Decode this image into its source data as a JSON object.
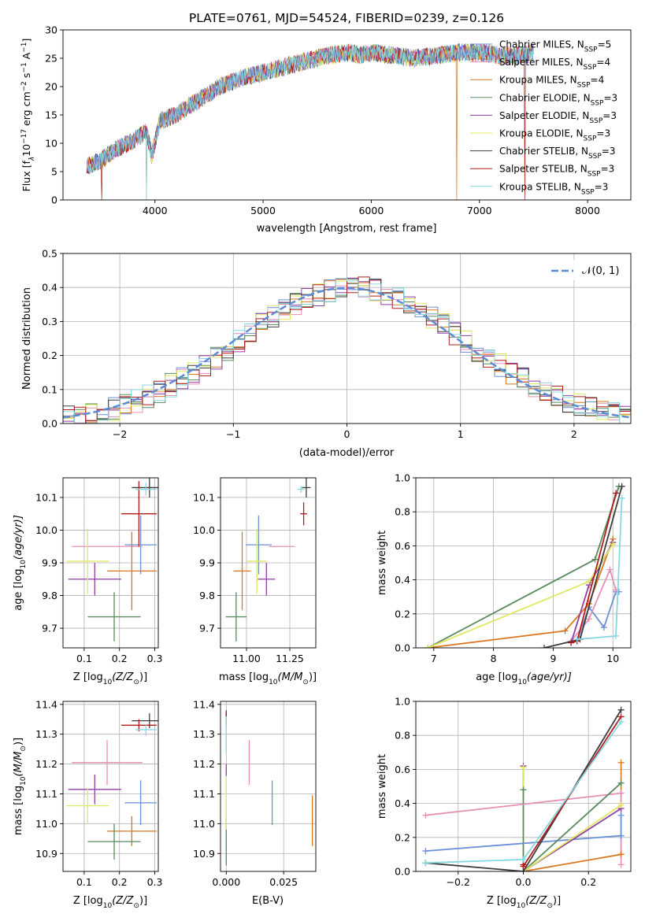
{
  "title": "PLATE=0761, MJD=54524, FIBERID=0239, z=0.126",
  "colors": {
    "chabrier_miles": "#6b8fd8",
    "salpeter_miles": "#e68fb5",
    "kroupa_miles": "#d9761f",
    "chabrier_elodie": "#5a8a5e",
    "salpeter_elodie": "#8e3fa6",
    "kroupa_elodie": "#e0e860",
    "chabrier_stelib": "#3d3d3d",
    "salpeter_stelib": "#b31c1c",
    "kroupa_stelib": "#86d8e0",
    "gauss": "#5b8bd6"
  },
  "chart_data": [
    {
      "id": "spectrum",
      "type": "line",
      "xlabel": "wavelength [Angstrom, rest frame]",
      "ylabel_main": "Flux [f",
      "ylabel_sub": "λ",
      "ylabel_rest": "10",
      "ylabel_exp": "−17",
      "ylabel_unit": " erg cm",
      "ylabel_exp2": "−2",
      "ylabel_s": " s",
      "ylabel_exp3": "−1",
      "ylabel_end": " A",
      "ylabel_exp4": "−1",
      "ylabel_close": "]",
      "xlim": [
        3150,
        8400
      ],
      "ylim": [
        0,
        30
      ],
      "xticks": [
        "4000",
        "5000",
        "6000",
        "7000",
        "8000"
      ],
      "yticks": [
        "0",
        "5",
        "10",
        "15",
        "20",
        "25",
        "30"
      ],
      "continuum": {
        "x": [
          3370,
          3500,
          3650,
          3800,
          3920,
          3970,
          4050,
          4200,
          4300,
          4400,
          4600,
          4800,
          5000,
          5200,
          5400,
          5600,
          5800,
          5900,
          6000,
          6200,
          6400,
          6600,
          6800,
          7000,
          7200,
          7400,
          7500
        ],
        "y": [
          6,
          7,
          9,
          10.5,
          12,
          8,
          14,
          15,
          16.5,
          17.5,
          20,
          21.5,
          22.5,
          23.5,
          24.5,
          25.5,
          26,
          25.5,
          26,
          25.5,
          25,
          25.5,
          26,
          26,
          25.5,
          25.5,
          26
        ]
      },
      "legend": [
        {
          "name": "Chabrier MILES, N",
          "sub": "SSP",
          "val": "=5",
          "color_key": "chabrier_miles"
        },
        {
          "name": "Salpeter MILES, N",
          "sub": "SSP",
          "val": "=4",
          "color_key": "salpeter_miles"
        },
        {
          "name": "Kroupa MILES, N",
          "sub": "SSP",
          "val": "=4",
          "color_key": "kroupa_miles"
        },
        {
          "name": "Chabrier ELODIE, N",
          "sub": "SSP",
          "val": "=3",
          "color_key": "chabrier_elodie"
        },
        {
          "name": "Salpeter ELODIE, N",
          "sub": "SSP",
          "val": "=3",
          "color_key": "salpeter_elodie"
        },
        {
          "name": "Kroupa ELODIE, N",
          "sub": "SSP",
          "val": "=3",
          "color_key": "kroupa_elodie"
        },
        {
          "name": "Chabrier STELIB, N",
          "sub": "SSP",
          "val": "=3",
          "color_key": "chabrier_stelib"
        },
        {
          "name": "Salpeter STELIB, N",
          "sub": "SSP",
          "val": "=3",
          "color_key": "salpeter_stelib"
        },
        {
          "name": "Kroupa STELIB, N",
          "sub": "SSP",
          "val": "=3",
          "color_key": "kroupa_stelib"
        }
      ]
    },
    {
      "id": "residual_hist",
      "type": "line",
      "xlabel": "(data-model)/error",
      "ylabel": "Normed distribution",
      "xlim": [
        -2.5,
        2.5
      ],
      "ylim": [
        0,
        0.5
      ],
      "xticks": [
        "−2",
        "−1",
        "0",
        "1",
        "2"
      ],
      "yticks": [
        "0.0",
        "0.1",
        "0.2",
        "0.3",
        "0.4",
        "0.5"
      ],
      "legend_label": "𝒩(0, 1)",
      "bin_edges": [
        -2.5,
        -2.4,
        -2.3,
        -2.2,
        -2.1,
        -2.0,
        -1.9,
        -1.8,
        -1.7,
        -1.6,
        -1.5,
        -1.4,
        -1.3,
        -1.2,
        -1.1,
        -1.0,
        -0.9,
        -0.8,
        -0.7,
        -0.6,
        -0.5,
        -0.4,
        -0.3,
        -0.2,
        -0.1,
        0.0,
        0.1,
        0.2,
        0.3,
        0.4,
        0.5,
        0.6,
        0.7,
        0.8,
        0.9,
        1.0,
        1.1,
        1.2,
        1.3,
        1.4,
        1.5,
        1.6,
        1.7,
        1.8,
        1.9,
        2.0,
        2.1,
        2.2,
        2.3,
        2.4,
        2.5
      ],
      "reference_density": [
        0.018,
        0.022,
        0.028,
        0.035,
        0.044,
        0.054,
        0.066,
        0.08,
        0.096,
        0.113,
        0.13,
        0.15,
        0.171,
        0.194,
        0.217,
        0.242,
        0.266,
        0.29,
        0.312,
        0.333,
        0.352,
        0.368,
        0.381,
        0.391,
        0.397,
        0.399,
        0.397,
        0.391,
        0.381,
        0.368,
        0.352,
        0.333,
        0.312,
        0.29,
        0.266,
        0.242,
        0.217,
        0.194,
        0.171,
        0.15,
        0.13,
        0.113,
        0.096,
        0.08,
        0.066,
        0.054,
        0.044,
        0.035,
        0.028,
        0.022
      ]
    },
    {
      "id": "age_vs_Z",
      "type": "scatter",
      "xlabel": "Z [log",
      "xlabel_sub": "10",
      "xlabel_rest": "(Z/Z",
      "xlabel_sun": "⊙",
      "xlabel_close": ")]",
      "ylabel": "age  [log",
      "ylabel_sub": "10",
      "ylabel_rest": "(age/yr)]",
      "xlim": [
        0.04,
        0.31
      ],
      "ylim": [
        9.64,
        10.16
      ],
      "xticks": [
        "0.1",
        "0.2",
        "0.3"
      ],
      "yticks": [
        "9.7",
        "9.8",
        "9.9",
        "10.0",
        "10.1"
      ],
      "points": [
        {
          "x": 0.26,
          "y": 9.955,
          "xerr": 0.045,
          "yerr": 0.09,
          "c": "chabrier_miles"
        },
        {
          "x": 0.165,
          "y": 9.95,
          "xerr": 0.1,
          "yerr": 0.0,
          "c": "salpeter_miles"
        },
        {
          "x": 0.235,
          "y": 9.875,
          "xerr": 0.07,
          "yerr": 0.12,
          "c": "kroupa_miles"
        },
        {
          "x": 0.185,
          "y": 9.735,
          "xerr": 0.075,
          "yerr": 0.075,
          "c": "chabrier_elodie"
        },
        {
          "x": 0.13,
          "y": 9.85,
          "xerr": 0.075,
          "yerr": 0.05,
          "c": "salpeter_elodie"
        },
        {
          "x": 0.11,
          "y": 9.905,
          "xerr": 0.06,
          "yerr": 0.1,
          "c": "kroupa_elodie"
        },
        {
          "x": 0.285,
          "y": 10.13,
          "xerr": 0.05,
          "yerr": 0.03,
          "c": "chabrier_stelib"
        },
        {
          "x": 0.255,
          "y": 10.05,
          "xerr": 0.05,
          "yerr": 0.1,
          "c": "salpeter_stelib"
        },
        {
          "x": 0.275,
          "y": 10.125,
          "xerr": 0.03,
          "yerr": 0.02,
          "c": "kroupa_stelib"
        }
      ]
    },
    {
      "id": "age_vs_mass",
      "type": "scatter",
      "xlabel": "mass [log",
      "xlabel_sub": "10",
      "xlabel_rest": "(M/M",
      "xlabel_sun": "⊙",
      "xlabel_close": ")]",
      "xlim": [
        10.85,
        11.4
      ],
      "ylim": [
        9.64,
        10.16
      ],
      "xticks": [
        "11.00",
        "11.25"
      ],
      "yticks": [
        "9.7",
        "9.8",
        "9.9",
        "10.0",
        "10.1"
      ],
      "points": [
        {
          "x": 11.07,
          "y": 9.955,
          "xerr": 0.075,
          "yerr": 0.09,
          "c": "chabrier_miles"
        },
        {
          "x": 11.205,
          "y": 9.95,
          "xerr": 0.075,
          "yerr": 0.0,
          "c": "salpeter_miles"
        },
        {
          "x": 10.975,
          "y": 9.875,
          "xerr": 0.05,
          "yerr": 0.12,
          "c": "kroupa_miles"
        },
        {
          "x": 10.94,
          "y": 9.735,
          "xerr": 0.06,
          "yerr": 0.075,
          "c": "chabrier_elodie"
        },
        {
          "x": 11.115,
          "y": 9.85,
          "xerr": 0.05,
          "yerr": 0.05,
          "c": "salpeter_elodie"
        },
        {
          "x": 11.06,
          "y": 9.905,
          "xerr": 0.06,
          "yerr": 0.1,
          "c": "kroupa_elodie"
        },
        {
          "x": 11.345,
          "y": 10.13,
          "xerr": 0.025,
          "yerr": 0.03,
          "c": "chabrier_stelib"
        },
        {
          "x": 11.33,
          "y": 10.05,
          "xerr": 0.02,
          "yerr": 0.035,
          "c": "salpeter_stelib"
        },
        {
          "x": 11.315,
          "y": 10.125,
          "xerr": 0.02,
          "yerr": 0.01,
          "c": "kroupa_stelib"
        }
      ]
    },
    {
      "id": "massweight_vs_age",
      "type": "line",
      "xlabel": "age  [log",
      "xlabel_sub": "10",
      "xlabel_rest": "(age/yr)]",
      "ylabel": "mass weight",
      "xlim": [
        6.7,
        10.3
      ],
      "ylim": [
        0,
        1
      ],
      "xticks": [
        "7",
        "8",
        "9",
        "10"
      ],
      "yticks": [
        "0.0",
        "0.2",
        "0.4",
        "0.6",
        "0.8",
        "1.0"
      ],
      "series": [
        {
          "c": "chabrier_miles",
          "x": [
            9.4,
            9.6,
            9.85,
            10.05,
            10.1
          ],
          "y": [
            0.04,
            0.24,
            0.12,
            0.33,
            0.33
          ]
        },
        {
          "c": "salpeter_miles",
          "x": [
            9.3,
            9.6,
            9.95,
            10.05
          ],
          "y": [
            0.04,
            0.17,
            0.46,
            0.34
          ]
        },
        {
          "c": "kroupa_miles",
          "x": [
            6.9,
            9.2,
            9.6,
            10.0
          ],
          "y": [
            0.0,
            0.1,
            0.26,
            0.64
          ]
        },
        {
          "c": "chabrier_elodie",
          "x": [
            6.9,
            9.7,
            10.1
          ],
          "y": [
            0.0,
            0.52,
            0.95
          ]
        },
        {
          "c": "salpeter_elodie",
          "x": [
            9.3,
            9.6,
            10.0
          ],
          "y": [
            0.03,
            0.37,
            0.62
          ]
        },
        {
          "c": "kroupa_elodie",
          "x": [
            6.9,
            9.6,
            10.0
          ],
          "y": [
            0.0,
            0.39,
            0.61
          ]
        },
        {
          "c": "chabrier_stelib",
          "x": [
            8.85,
            9.45,
            10.15
          ],
          "y": [
            0.0,
            0.05,
            0.95
          ]
        },
        {
          "c": "salpeter_stelib",
          "x": [
            9.3,
            9.4,
            10.05
          ],
          "y": [
            0.03,
            0.04,
            0.91
          ]
        },
        {
          "c": "kroupa_stelib",
          "x": [
            9.4,
            10.05,
            10.15
          ],
          "y": [
            0.05,
            0.07,
            0.88
          ]
        }
      ]
    },
    {
      "id": "mass_vs_Z",
      "type": "scatter",
      "xlabel": "Z [log",
      "xlabel_sub": "10",
      "xlabel_rest": "(Z/Z",
      "xlabel_sun": "⊙",
      "xlabel_close": ")]",
      "ylabel": "mass [log",
      "ylabel_sub": "10",
      "ylabel_rest": "(M/M",
      "ylabel_sun": "⊙",
      "ylabel_close": ")]",
      "xlim": [
        0.04,
        0.31
      ],
      "ylim": [
        10.84,
        11.41
      ],
      "xticks": [
        "0.1",
        "0.2",
        "0.3"
      ],
      "yticks": [
        "10.9",
        "11.0",
        "11.1",
        "11.2",
        "11.3",
        "11.4"
      ],
      "points": [
        {
          "x": 0.26,
          "y": 11.07,
          "xerr": 0.045,
          "yerr": 0.075,
          "c": "chabrier_miles"
        },
        {
          "x": 0.165,
          "y": 11.205,
          "xerr": 0.1,
          "yerr": 0.075,
          "c": "salpeter_miles"
        },
        {
          "x": 0.235,
          "y": 10.975,
          "xerr": 0.07,
          "yerr": 0.05,
          "c": "kroupa_miles"
        },
        {
          "x": 0.185,
          "y": 10.94,
          "xerr": 0.075,
          "yerr": 0.06,
          "c": "chabrier_elodie"
        },
        {
          "x": 0.13,
          "y": 11.115,
          "xerr": 0.075,
          "yerr": 0.05,
          "c": "salpeter_elodie"
        },
        {
          "x": 0.11,
          "y": 11.06,
          "xerr": 0.06,
          "yerr": 0.06,
          "c": "kroupa_elodie"
        },
        {
          "x": 0.285,
          "y": 11.345,
          "xerr": 0.05,
          "yerr": 0.025,
          "c": "chabrier_stelib"
        },
        {
          "x": 0.255,
          "y": 11.33,
          "xerr": 0.05,
          "yerr": 0.02,
          "c": "salpeter_stelib"
        },
        {
          "x": 0.275,
          "y": 11.315,
          "xerr": 0.03,
          "yerr": 0.02,
          "c": "kroupa_stelib"
        }
      ]
    },
    {
      "id": "mass_vs_ebv",
      "type": "scatter",
      "xlabel": "E(B-V)",
      "xlim": [
        -0.0025,
        0.039
      ],
      "ylim": [
        10.84,
        11.41
      ],
      "xticks": [
        "0.000",
        "0.025"
      ],
      "yticks": [
        "10.9",
        "11.0",
        "11.1",
        "11.2",
        "11.3",
        "11.4"
      ],
      "points": [
        {
          "x": 0.02,
          "y": 11.07,
          "xerr": 0,
          "yerr": 0.075,
          "c": "chabrier_miles"
        },
        {
          "x": 0.01,
          "y": 11.205,
          "xerr": 0,
          "yerr": 0.075,
          "c": "salpeter_miles"
        },
        {
          "x": 0.0375,
          "y": 11.01,
          "xerr": 0,
          "yerr": 0.085,
          "c": "kroupa_miles"
        },
        {
          "x": 0.0,
          "y": 10.94,
          "xerr": 0,
          "yerr": 0.08,
          "c": "chabrier_elodie"
        },
        {
          "x": 0.0,
          "y": 11.18,
          "xerr": 0,
          "yerr": 0.02,
          "c": "salpeter_elodie"
        },
        {
          "x": 0.0,
          "y": 11.07,
          "xerr": 0,
          "yerr": 0.09,
          "c": "kroupa_elodie"
        },
        {
          "x": 0.0,
          "y": 11.36,
          "xerr": 0,
          "yerr": 0.015,
          "c": "chabrier_stelib"
        },
        {
          "x": 0.0,
          "y": 11.355,
          "xerr": 0,
          "yerr": 0.025,
          "c": "salpeter_stelib"
        },
        {
          "x": 0.0,
          "y": 11.3,
          "xerr": 0,
          "yerr": 0.06,
          "c": "kroupa_stelib"
        }
      ]
    },
    {
      "id": "massweight_vs_Z",
      "type": "line",
      "xlabel": "Z [log",
      "xlabel_sub": "10",
      "xlabel_rest": "(Z/Z",
      "xlabel_sun": "⊙",
      "xlabel_close": ")]",
      "ylabel": "mass weight",
      "xlim": [
        -0.33,
        0.33
      ],
      "ylim": [
        0,
        1
      ],
      "xticks": [
        "−0.2",
        "0.0",
        "0.2"
      ],
      "yticks": [
        "0.0",
        "0.2",
        "0.4",
        "0.6",
        "0.8",
        "1.0"
      ],
      "series": [
        {
          "c": "chabrier_miles",
          "x": [
            -0.3,
            0.3
          ],
          "y": [
            0.12,
            0.21
          ]
        },
        {
          "c": "salpeter_miles",
          "x": [
            -0.3,
            0.3
          ],
          "y": [
            0.33,
            0.46
          ]
        },
        {
          "c": "kroupa_miles",
          "x": [
            0.0,
            0.3
          ],
          "y": [
            0.0,
            0.1
          ]
        },
        {
          "c": "chabrier_elodie",
          "x": [
            0.0,
            0.3
          ],
          "y": [
            0.0,
            0.52
          ]
        },
        {
          "c": "salpeter_elodie",
          "x": [
            0.0,
            0.3
          ],
          "y": [
            0.0,
            0.37
          ]
        },
        {
          "c": "kroupa_elodie",
          "x": [
            0.0,
            0.3
          ],
          "y": [
            0.0,
            0.39
          ]
        },
        {
          "c": "chabrier_stelib",
          "x": [
            -0.3,
            0.0,
            0.3
          ],
          "y": [
            0.05,
            0.0,
            0.95
          ]
        },
        {
          "c": "salpeter_stelib",
          "x": [
            0.0,
            0.3
          ],
          "y": [
            0.03,
            0.91
          ]
        },
        {
          "c": "kroupa_stelib",
          "x": [
            -0.3,
            0.0,
            0.3
          ],
          "y": [
            0.05,
            0.07,
            0.88
          ]
        }
      ],
      "vertical_stacks": [
        {
          "c": "salpeter_elodie",
          "x": 0.0,
          "y": [
            0.0,
            0.62
          ]
        },
        {
          "c": "kroupa_elodie",
          "x": 0.0,
          "y": [
            0.0,
            0.61
          ]
        },
        {
          "c": "chabrier_elodie",
          "x": 0.0,
          "y": [
            0.0,
            0.48
          ]
        },
        {
          "c": "kroupa_miles",
          "x": 0.3,
          "y": [
            0.1,
            0.64
          ]
        },
        {
          "c": "salpeter_miles",
          "x": 0.3,
          "y": [
            0.04,
            0.46
          ]
        },
        {
          "c": "chabrier_miles",
          "x": 0.3,
          "y": [
            0.21,
            0.33
          ]
        },
        {
          "c": "salpeter_stelib",
          "x": 0.0,
          "y": [
            0.03,
            0.04
          ]
        }
      ]
    }
  ]
}
